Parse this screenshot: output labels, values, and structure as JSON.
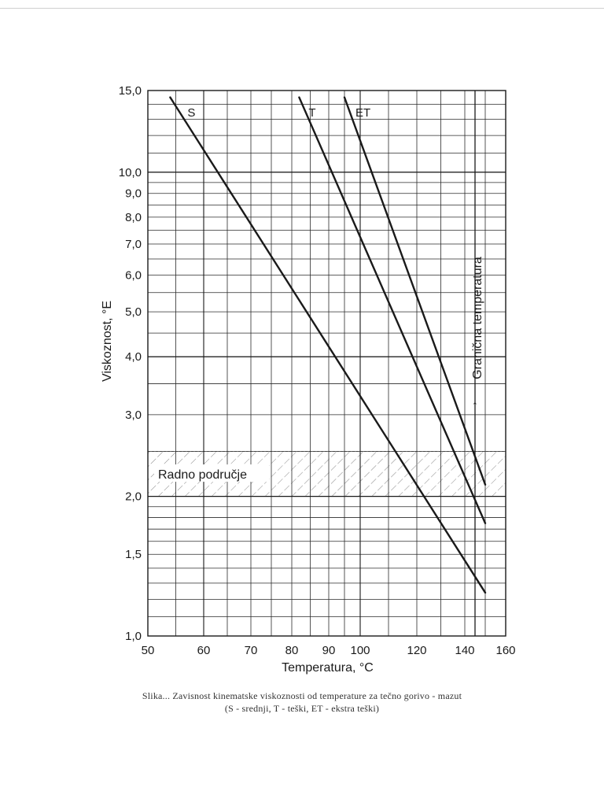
{
  "chart_data": {
    "type": "line",
    "y_scale": "log",
    "x_scale": "nonlinear (approx. log)",
    "xlabel": "Temperatura, °C",
    "ylabel": "Viskoznost, °E",
    "xlim": [
      50,
      160
    ],
    "ylim": [
      1.0,
      15.0
    ],
    "x_ticks": [
      50,
      60,
      70,
      80,
      90,
      100,
      120,
      140,
      160
    ],
    "x_tick_labels": [
      "50",
      "60",
      "70",
      "80",
      "90",
      "100",
      "120",
      "140",
      "160"
    ],
    "y_ticks": [
      1.0,
      1.5,
      2.0,
      3.0,
      4.0,
      5.0,
      6.0,
      7.0,
      8.0,
      9.0,
      10.0,
      15.0
    ],
    "y_tick_labels": [
      "1,0",
      "1,5",
      "2,0",
      "3,0",
      "4,0",
      "5,0",
      "6,0",
      "7,0",
      "8,0",
      "9,0",
      "10,0",
      "15,0"
    ],
    "series": [
      {
        "name": "S",
        "x": [
          54,
          150
        ],
        "values": [
          14.5,
          1.24
        ]
      },
      {
        "name": "T",
        "x": [
          82,
          150
        ],
        "values": [
          14.5,
          1.75
        ]
      },
      {
        "name": "ET",
        "x": [
          95,
          150
        ],
        "values": [
          14.5,
          2.12
        ]
      }
    ],
    "working_range": {
      "label": "Radno područje",
      "y_from": 2.0,
      "y_to": 2.5
    },
    "limit_line": {
      "label": "Granična temperatura",
      "x": 145,
      "arrow": "↑"
    }
  },
  "caption": {
    "line1": "Slika... Zavisnost kinematske viskoznosti od temperature za tečno gorivo - mazut",
    "line2": "(S - srednji, T - teški, ET - ekstra teški)"
  },
  "colors": {
    "ink": "#1a1a1a",
    "grid": "#2a2a2a",
    "hatch": "#555555"
  }
}
